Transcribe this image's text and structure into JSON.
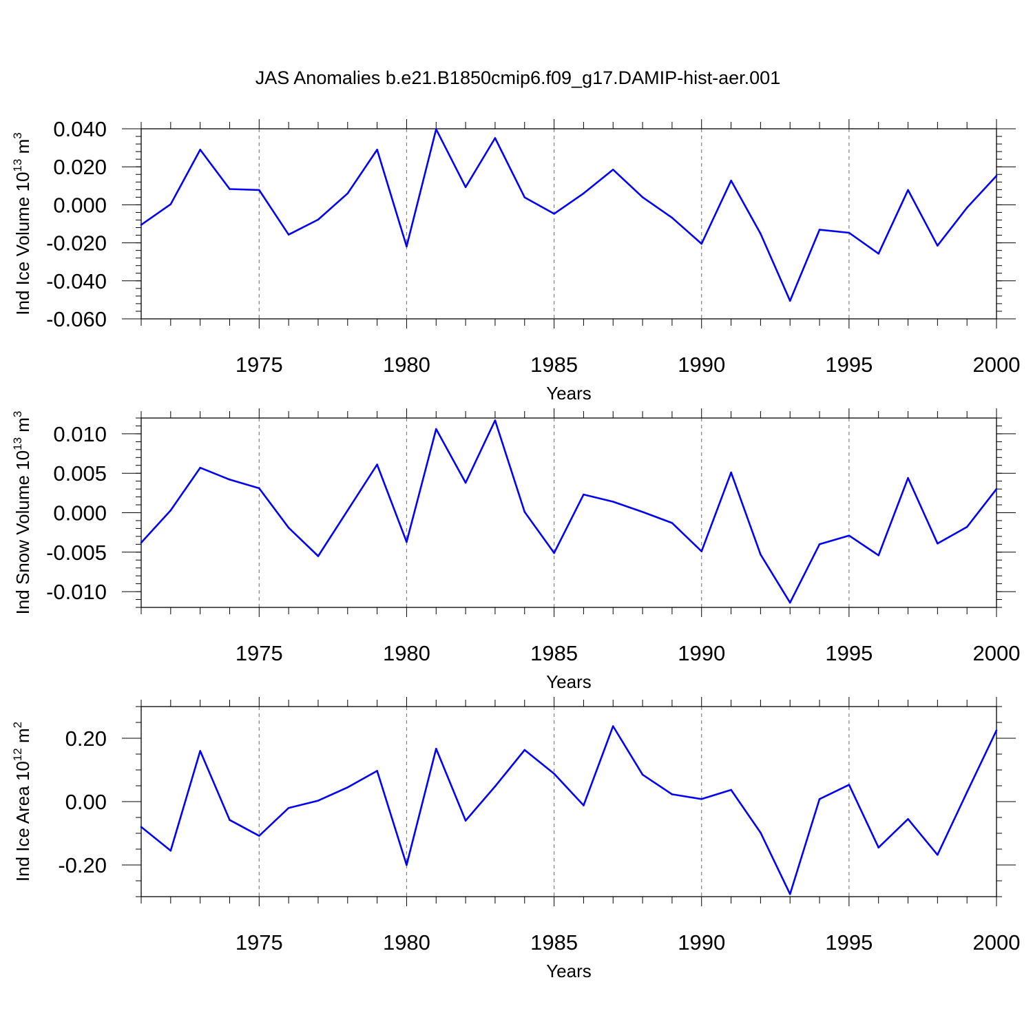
{
  "title": "JAS Anomalies b.e21.B1850cmip6.f09_g17.DAMIP-hist-aer.001",
  "colors": {
    "series": "#0000ff",
    "axis": "#000000",
    "grid": "#808080"
  },
  "chart_data": [
    {
      "type": "line",
      "ylabel": "Ind Ice Volume 10",
      "ylabel_exp": "13",
      "ylabel_unit": " m",
      "ylabel_unit_exp": "3",
      "xlabel": "Years",
      "xlim": [
        1971,
        2000
      ],
      "ylim": [
        -0.06,
        0.04
      ],
      "yticks": [
        0.04,
        0.02,
        0.0,
        -0.02,
        -0.04,
        -0.06
      ],
      "ytick_labels": [
        "0.040",
        "0.020",
        "0.000",
        "-0.020",
        "-0.040",
        "-0.060"
      ],
      "yminor_step": 0.004,
      "xticks": [
        1975,
        1980,
        1985,
        1990,
        1995,
        2000
      ],
      "xtick_labels": [
        "1975",
        "1980",
        "1985",
        "1990",
        "1995",
        "2000"
      ],
      "x": [
        1971,
        1972,
        1973,
        1974,
        1975,
        1976,
        1977,
        1978,
        1979,
        1980,
        1981,
        1982,
        1983,
        1984,
        1985,
        1986,
        1987,
        1988,
        1989,
        1990,
        1991,
        1992,
        1993,
        1994,
        1995,
        1996,
        1997,
        1998,
        1999,
        2000
      ],
      "values": [
        -0.0105,
        0.0003,
        0.029,
        0.0083,
        0.0078,
        -0.0157,
        -0.0078,
        0.006,
        0.029,
        -0.0219,
        0.0398,
        0.0093,
        0.0351,
        0.0039,
        -0.0047,
        0.006,
        0.0185,
        0.004,
        -0.0068,
        -0.0205,
        0.0127,
        -0.0152,
        -0.0505,
        -0.0131,
        -0.0147,
        -0.0257,
        0.0078,
        -0.0215,
        -0.0015,
        0.0153
      ]
    },
    {
      "type": "line",
      "ylabel": "Ind Snow Volume 10",
      "ylabel_exp": "13",
      "ylabel_unit": " m",
      "ylabel_unit_exp": "3",
      "xlabel": "Years",
      "xlim": [
        1971,
        2000
      ],
      "ylim": [
        -0.012,
        0.012
      ],
      "yticks": [
        0.01,
        0.005,
        0.0,
        -0.005,
        -0.01
      ],
      "ytick_labels": [
        "0.010",
        "0.005",
        "0.000",
        "-0.005",
        "-0.010"
      ],
      "yminor_step": 0.001,
      "xticks": [
        1975,
        1980,
        1985,
        1990,
        1995,
        2000
      ],
      "xtick_labels": [
        "1975",
        "1980",
        "1985",
        "1990",
        "1995",
        "2000"
      ],
      "x": [
        1971,
        1972,
        1973,
        1974,
        1975,
        1976,
        1977,
        1978,
        1979,
        1980,
        1981,
        1982,
        1983,
        1984,
        1985,
        1986,
        1987,
        1988,
        1989,
        1990,
        1991,
        1992,
        1993,
        1994,
        1995,
        1996,
        1997,
        1998,
        1999,
        2000
      ],
      "values": [
        -0.0038,
        0.0003,
        0.0057,
        0.0042,
        0.0031,
        -0.0019,
        -0.0055,
        0.0003,
        0.0061,
        -0.0037,
        0.0106,
        0.0038,
        0.0117,
        0.0001,
        -0.0051,
        0.0023,
        0.0014,
        0.0001,
        -0.0013,
        -0.0049,
        0.0051,
        -0.0053,
        -0.0114,
        -0.004,
        -0.0029,
        -0.0054,
        0.0044,
        -0.0039,
        -0.0018,
        0.003
      ]
    },
    {
      "type": "line",
      "ylabel": "Ind Ice Area 10",
      "ylabel_exp": "12",
      "ylabel_unit": " m",
      "ylabel_unit_exp": "2",
      "xlabel": "Years",
      "xlim": [
        1971,
        2000
      ],
      "ylim": [
        -0.3,
        0.3
      ],
      "yticks": [
        0.2,
        0.0,
        -0.2
      ],
      "ytick_labels": [
        "0.20",
        "0.00",
        "-0.20"
      ],
      "yminor_step": 0.05,
      "xticks": [
        1975,
        1980,
        1985,
        1990,
        1995,
        2000
      ],
      "xtick_labels": [
        "1975",
        "1980",
        "1985",
        "1990",
        "1995",
        "2000"
      ],
      "x": [
        1971,
        1972,
        1973,
        1974,
        1975,
        1976,
        1977,
        1978,
        1979,
        1980,
        1981,
        1982,
        1983,
        1984,
        1985,
        1986,
        1987,
        1988,
        1989,
        1990,
        1991,
        1992,
        1993,
        1994,
        1995,
        1996,
        1997,
        1998,
        1999,
        2000
      ],
      "values": [
        -0.08,
        -0.155,
        0.16,
        -0.058,
        -0.108,
        -0.02,
        0.003,
        0.045,
        0.097,
        -0.2,
        0.167,
        -0.06,
        0.048,
        0.163,
        0.088,
        -0.012,
        0.238,
        0.085,
        0.023,
        0.008,
        0.037,
        -0.098,
        -0.292,
        0.008,
        0.053,
        -0.145,
        -0.055,
        -0.168,
        0.03,
        0.225
      ]
    }
  ]
}
